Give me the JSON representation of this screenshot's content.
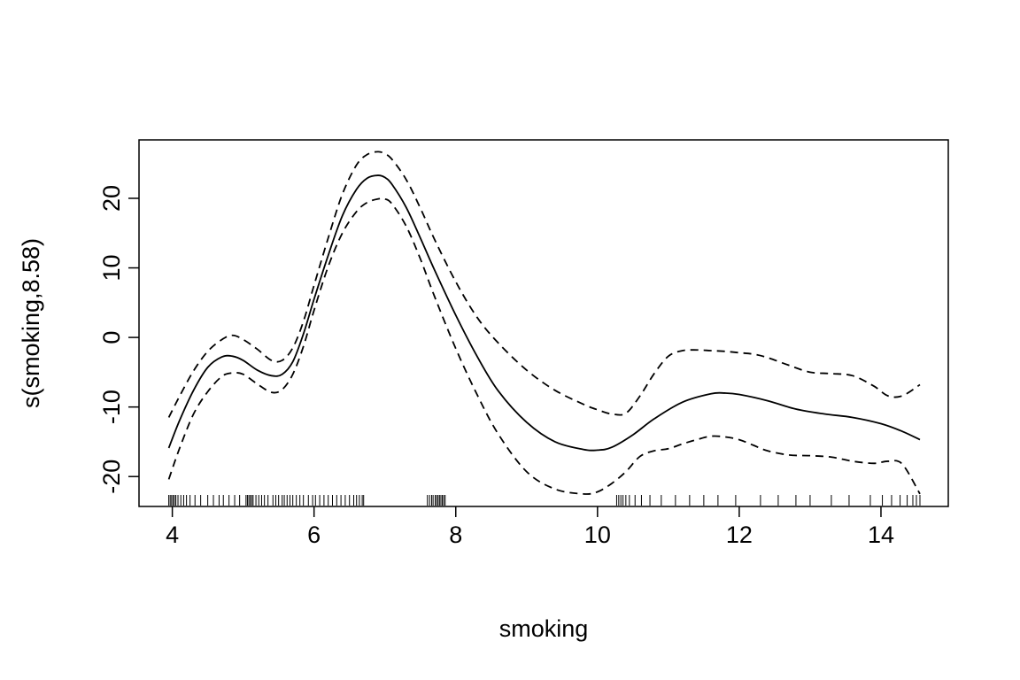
{
  "chart_data": {
    "type": "line",
    "title": "",
    "xlabel": "smoking",
    "ylabel": "s(smoking,8.58)",
    "xlim": [
      3.53,
      14.95
    ],
    "ylim": [
      -24.3,
      28.4
    ],
    "grid": false,
    "x_ticks": [
      4,
      6,
      8,
      10,
      12,
      14
    ],
    "y_ticks": [
      -20,
      -10,
      0,
      10,
      20
    ],
    "series": [
      {
        "style": "solid",
        "x": [
          3.95,
          4.1,
          4.3,
          4.5,
          4.7,
          4.85,
          5.0,
          5.2,
          5.4,
          5.55,
          5.7,
          5.85,
          6.0,
          6.2,
          6.4,
          6.6,
          6.75,
          6.9,
          7.0,
          7.1,
          7.3,
          7.5,
          7.7,
          8.0,
          8.3,
          8.6,
          9.0,
          9.4,
          9.8,
          10.0,
          10.2,
          10.5,
          10.8,
          11.2,
          11.6,
          11.8,
          12.0,
          12.4,
          12.8,
          13.2,
          13.6,
          14.0,
          14.3,
          14.55
        ],
        "y": [
          -15.9,
          -12.0,
          -7.6,
          -4.3,
          -2.8,
          -2.7,
          -3.3,
          -4.7,
          -5.5,
          -5.3,
          -3.5,
          0.5,
          5.5,
          11.8,
          17.5,
          21.3,
          22.9,
          23.3,
          23.0,
          22.0,
          18.7,
          14.3,
          9.7,
          3.2,
          -2.7,
          -7.7,
          -12.2,
          -15.0,
          -16.1,
          -16.2,
          -15.8,
          -14.0,
          -11.7,
          -9.3,
          -8.1,
          -8.0,
          -8.2,
          -9.1,
          -10.3,
          -11.0,
          -11.5,
          -12.4,
          -13.5,
          -14.7
        ]
      },
      {
        "style": "dashed",
        "x": [
          3.95,
          4.1,
          4.3,
          4.5,
          4.7,
          4.85,
          5.0,
          5.2,
          5.4,
          5.55,
          5.7,
          5.85,
          6.0,
          6.2,
          6.4,
          6.6,
          6.75,
          6.9,
          7.0,
          7.1,
          7.3,
          7.5,
          7.7,
          8.0,
          8.3,
          8.6,
          9.0,
          9.4,
          9.8,
          10.0,
          10.2,
          10.4,
          10.6,
          10.8,
          11.0,
          11.2,
          11.4,
          11.6,
          11.8,
          12.0,
          12.2,
          12.4,
          12.7,
          13.0,
          13.3,
          13.6,
          13.9,
          14.1,
          14.3,
          14.55
        ],
        "y": [
          -11.5,
          -8.5,
          -4.8,
          -2.0,
          -0.3,
          0.3,
          -0.3,
          -1.7,
          -3.3,
          -3.3,
          -1.5,
          2.3,
          7.5,
          14.3,
          20.6,
          24.8,
          26.3,
          26.7,
          26.4,
          25.6,
          22.7,
          18.6,
          14.1,
          8.0,
          2.9,
          -0.8,
          -4.7,
          -7.6,
          -9.6,
          -10.4,
          -11.0,
          -10.9,
          -8.4,
          -5.2,
          -2.7,
          -1.9,
          -1.8,
          -1.9,
          -2.0,
          -2.2,
          -2.4,
          -2.9,
          -4.0,
          -5.0,
          -5.2,
          -5.5,
          -7.0,
          -8.4,
          -8.4,
          -6.8
        ]
      },
      {
        "style": "dashed",
        "x": [
          3.95,
          4.1,
          4.3,
          4.5,
          4.7,
          4.85,
          5.0,
          5.2,
          5.4,
          5.55,
          5.7,
          5.85,
          6.0,
          6.2,
          6.4,
          6.6,
          6.75,
          6.9,
          7.0,
          7.1,
          7.3,
          7.5,
          7.7,
          8.0,
          8.3,
          8.6,
          9.0,
          9.4,
          9.8,
          10.0,
          10.2,
          10.4,
          10.6,
          10.8,
          11.0,
          11.2,
          11.4,
          11.6,
          11.8,
          12.0,
          12.2,
          12.4,
          12.7,
          13.0,
          13.3,
          13.6,
          13.9,
          14.1,
          14.3,
          14.55
        ],
        "y": [
          -20.4,
          -16.0,
          -11.0,
          -7.8,
          -5.6,
          -5.1,
          -5.3,
          -6.7,
          -7.9,
          -7.5,
          -5.3,
          -1.3,
          3.9,
          10.2,
          15.0,
          18.1,
          19.4,
          19.9,
          19.9,
          19.2,
          16.0,
          11.3,
          5.9,
          -1.6,
          -8.2,
          -13.9,
          -19.3,
          -21.8,
          -22.5,
          -22.2,
          -21.0,
          -19.3,
          -17.1,
          -16.3,
          -16.0,
          -15.3,
          -14.7,
          -14.2,
          -14.3,
          -14.7,
          -15.5,
          -16.3,
          -16.9,
          -17.0,
          -17.2,
          -17.8,
          -18.1,
          -17.8,
          -18.2,
          -22.5
        ]
      }
    ],
    "rug_x": [
      3.95,
      3.97,
      3.99,
      4.01,
      4.03,
      4.05,
      4.08,
      4.12,
      4.16,
      4.2,
      4.25,
      4.32,
      4.4,
      4.5,
      4.58,
      4.66,
      4.72,
      4.8,
      4.88,
      4.95,
      5.04,
      5.06,
      5.08,
      5.1,
      5.12,
      5.14,
      5.18,
      5.22,
      5.26,
      5.3,
      5.35,
      5.42,
      5.46,
      5.5,
      5.55,
      5.58,
      5.62,
      5.66,
      5.7,
      5.75,
      5.8,
      5.85,
      5.92,
      5.98,
      6.02,
      6.08,
      6.14,
      6.2,
      6.26,
      6.32,
      6.38,
      6.44,
      6.5,
      6.56,
      6.6,
      6.64,
      6.68,
      6.7,
      7.6,
      7.63,
      7.66,
      7.68,
      7.71,
      7.73,
      7.75,
      7.77,
      7.79,
      7.81,
      7.83,
      7.85,
      10.27,
      10.3,
      10.33,
      10.36,
      10.4,
      10.45,
      10.53,
      10.62,
      10.74,
      10.9,
      11.1,
      11.3,
      11.5,
      11.7,
      11.95,
      12.3,
      12.55,
      12.8,
      13.0,
      13.3,
      13.55,
      13.85,
      14.02,
      14.15,
      14.27,
      14.37,
      14.45,
      14.5,
      14.55
    ]
  }
}
